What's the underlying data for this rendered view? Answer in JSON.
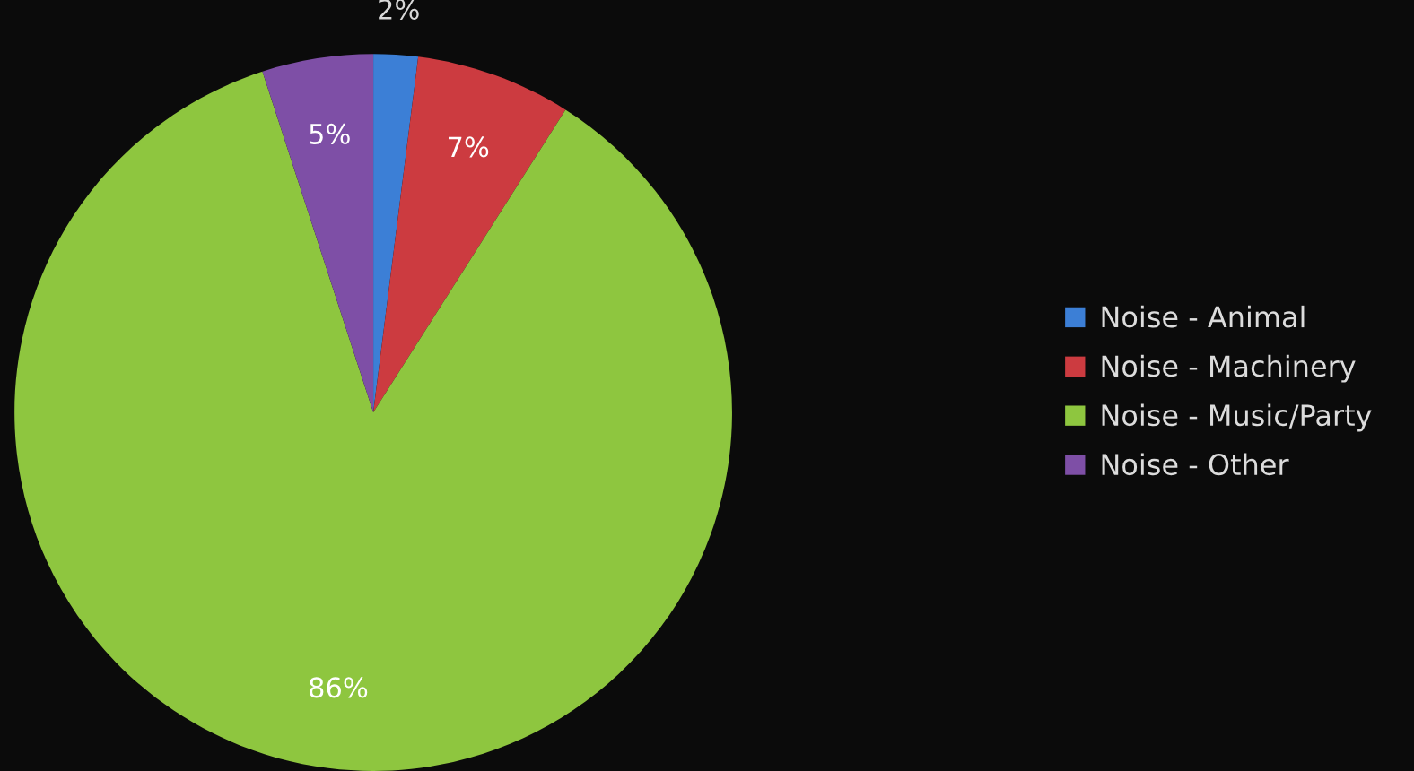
{
  "chart_data": {
    "type": "pie",
    "categories": [
      "Noise - Animal",
      "Noise - Machinery",
      "Noise - Music/Party",
      "Noise - Other"
    ],
    "values": [
      2,
      7,
      86,
      5
    ],
    "colors": [
      "#3c7fd6",
      "#cc3b40",
      "#8ec63f",
      "#7e4fa6"
    ],
    "value_labels": [
      "2%",
      "7%",
      "86%",
      "5%"
    ],
    "legend": "right"
  }
}
